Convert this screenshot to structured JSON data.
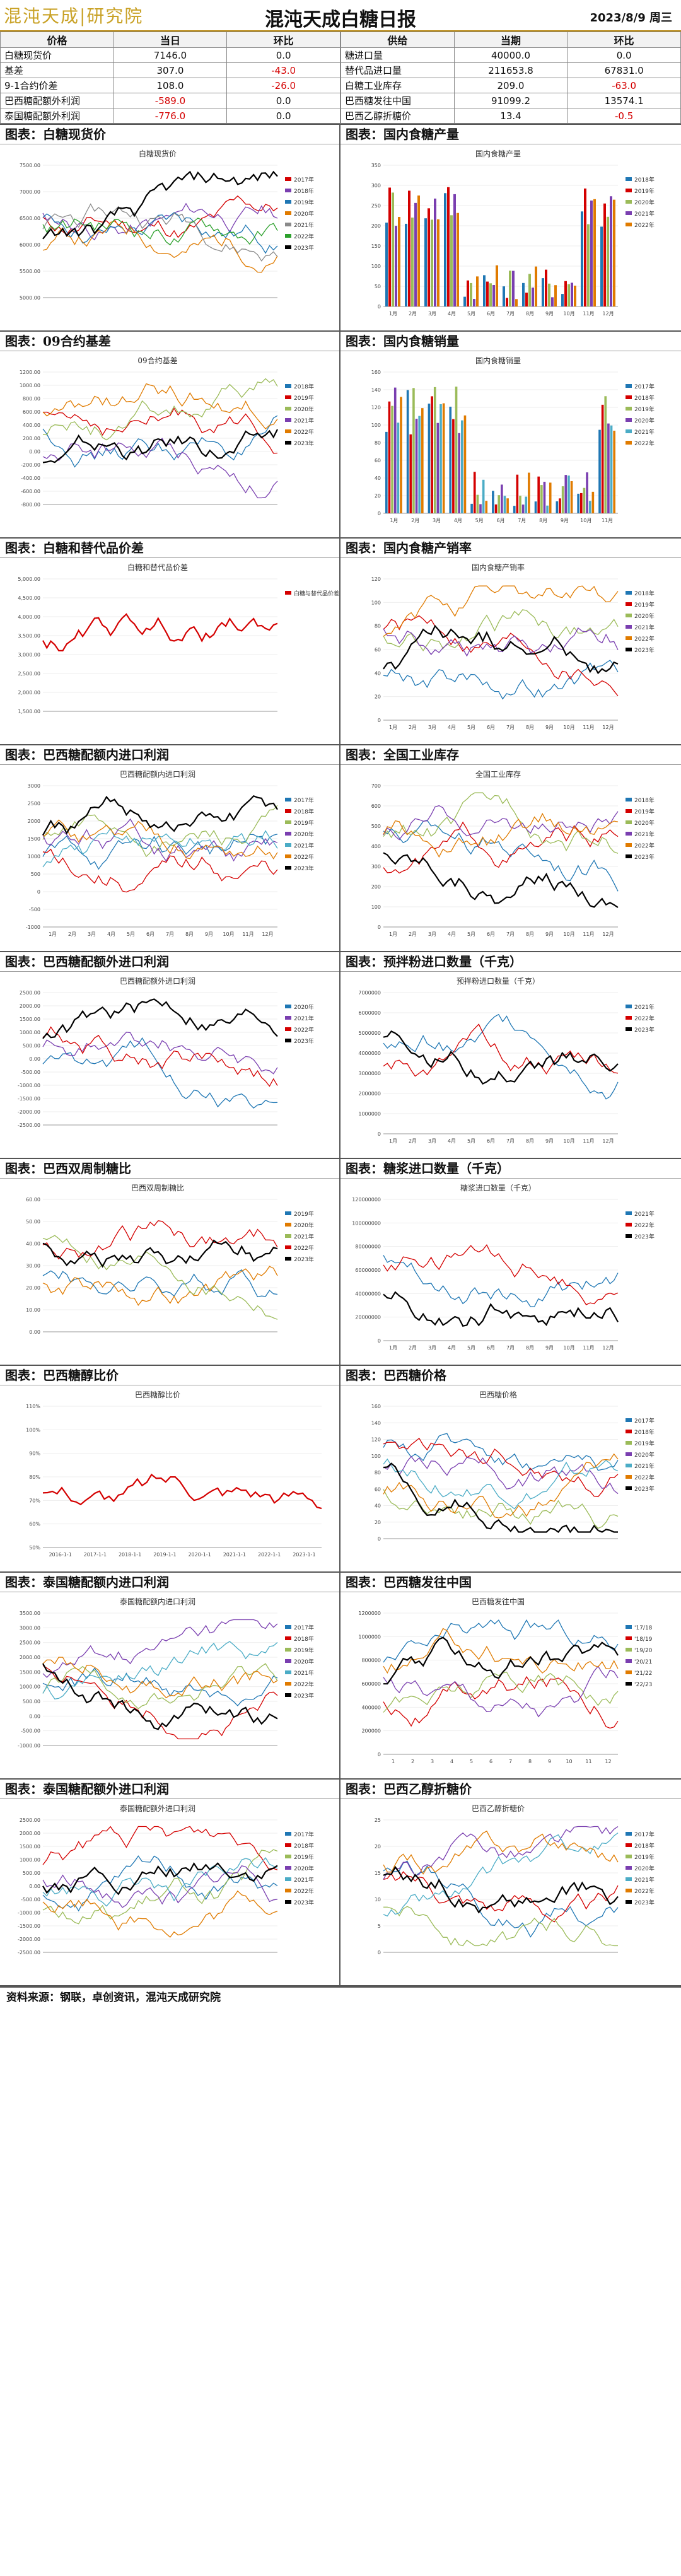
{
  "header": {
    "title": "混沌天成白糖日报",
    "date": "2023/8/9 周三",
    "logo_text": "混沌天成|研究院"
  },
  "tables": {
    "left": {
      "headers": [
        "价格",
        "当日",
        "环比"
      ],
      "rows": [
        [
          "白糖现货价",
          "7146.0",
          "0.0"
        ],
        [
          "基差",
          "307.0",
          "-43.0"
        ],
        [
          "9-1合约价差",
          "108.0",
          "-26.0"
        ],
        [
          "巴西糖配额外利润",
          "-589.0",
          "0.0"
        ],
        [
          "泰国糖配额外利润",
          "-776.0",
          "0.0"
        ]
      ]
    },
    "right": {
      "headers": [
        "供给",
        "当期",
        "环比"
      ],
      "rows": [
        [
          "糖进口量",
          "40000.0",
          "0.0"
        ],
        [
          "替代品进口量",
          "211653.8",
          "67831.0"
        ],
        [
          "白糖工业库存",
          "209.0",
          "-63.0"
        ],
        [
          "巴西糖发往中国",
          "91099.2",
          "13574.1"
        ],
        [
          "巴西乙醇折糖价",
          "13.4",
          "-0.5"
        ]
      ]
    }
  },
  "footer": {
    "source": "资料来源：钢联，卓创资讯，混沌天成研究院"
  },
  "panels": [
    {
      "caption": "图表：白糖现货价",
      "title": "白糖现货价",
      "type": "line",
      "yticks": [
        "5000.00",
        "5500.00",
        "6000.00",
        "6500.00",
        "7000.00",
        "7500.00"
      ],
      "legend": [
        "2017年",
        "2018年",
        "2019年",
        "2020年",
        "2021年",
        "2022年",
        "2023年"
      ],
      "colors": [
        "#d40000",
        "#7a3fb0",
        "#1f77b4",
        "#e07b00",
        "#8a8a8a",
        "#2ca02c",
        "#000000"
      ]
    },
    {
      "caption": "图表：国内食糖产量",
      "title": "国内食糖产量",
      "type": "bar",
      "yticks": [
        "0",
        "50",
        "100",
        "150",
        "200",
        "250",
        "300",
        "350"
      ],
      "xticks": [
        "1月",
        "2月",
        "3月",
        "4月",
        "5月",
        "6月",
        "7月",
        "8月",
        "9月",
        "10月",
        "11月",
        "12月"
      ],
      "legend": [
        "2018年",
        "2019年",
        "2020年",
        "2021年",
        "2022年"
      ],
      "colors": [
        "#1f77b4",
        "#d40000",
        "#9bbb59",
        "#7a3fb0",
        "#e07b00"
      ]
    },
    {
      "caption": "图表：09合约基差",
      "title": "09合约基差",
      "type": "line",
      "yticks": [
        "-800.00",
        "-600.00",
        "-400.00",
        "-200.00",
        "0.00",
        "200.00",
        "400.00",
        "600.00",
        "800.00",
        "1000.00",
        "1200.00"
      ],
      "legend": [
        "2018年",
        "2019年",
        "2020年",
        "2021年",
        "2022年",
        "2023年"
      ],
      "colors": [
        "#1f77b4",
        "#d40000",
        "#9bbb59",
        "#7a3fb0",
        "#e07b00",
        "#000000"
      ]
    },
    {
      "caption": "图表：国内食糖销量",
      "title": "国内食糖销量",
      "type": "bar",
      "yticks": [
        "0",
        "20",
        "40",
        "60",
        "80",
        "100",
        "120",
        "140",
        "160"
      ],
      "xticks": [
        "1月",
        "2月",
        "3月",
        "4月",
        "5月",
        "6月",
        "7月",
        "8月",
        "9月",
        "10月",
        "11月"
      ],
      "legend": [
        "2017年",
        "2018年",
        "2019年",
        "2020年",
        "2021年",
        "2022年"
      ],
      "colors": [
        "#1f77b4",
        "#d40000",
        "#9bbb59",
        "#7a3fb0",
        "#4bacc6",
        "#e07b00"
      ]
    },
    {
      "caption": "图表：白糖和替代品价差",
      "title": "白糖和替代品价差",
      "type": "line",
      "yticks": [
        "1,500.00",
        "2,000.00",
        "2,500.00",
        "3,000.00",
        "3,500.00",
        "4,000.00",
        "4,500.00",
        "5,000.00"
      ],
      "legend": [
        "白糖与替代品价差"
      ],
      "colors": [
        "#d40000"
      ]
    },
    {
      "caption": "图表：国内食糖产销率",
      "title": "国内食糖产销率",
      "type": "line",
      "yticks": [
        "0",
        "20",
        "40",
        "60",
        "80",
        "100",
        "120"
      ],
      "xticks": [
        "1月",
        "2月",
        "3月",
        "4月",
        "5月",
        "6月",
        "7月",
        "8月",
        "9月",
        "10月",
        "11月",
        "12月"
      ],
      "legend": [
        "2018年",
        "2019年",
        "2020年",
        "2021年",
        "2022年",
        "2023年"
      ],
      "colors": [
        "#1f77b4",
        "#d40000",
        "#9bbb59",
        "#7a3fb0",
        "#e07b00",
        "#000000"
      ]
    },
    {
      "caption": "图表：巴西糖配额内进口利润",
      "title": "巴西糖配额内进口利润",
      "type": "line",
      "yticks": [
        "-1000",
        "-500",
        "0",
        "500",
        "1000",
        "1500",
        "2000",
        "2500",
        "3000"
      ],
      "xticks": [
        "1月",
        "2月",
        "3月",
        "4月",
        "5月",
        "6月",
        "7月",
        "8月",
        "9月",
        "10月",
        "11月",
        "12月"
      ],
      "legend": [
        "2017年",
        "2018年",
        "2019年",
        "2020年",
        "2021年",
        "2022年",
        "2023年"
      ],
      "colors": [
        "#1f77b4",
        "#d40000",
        "#9bbb59",
        "#7a3fb0",
        "#4bacc6",
        "#e07b00",
        "#000000"
      ]
    },
    {
      "caption": "图表：全国工业库存",
      "title": "全国工业库存",
      "type": "line",
      "yticks": [
        "0",
        "100",
        "200",
        "300",
        "400",
        "500",
        "600",
        "700"
      ],
      "xticks": [
        "1月",
        "2月",
        "3月",
        "4月",
        "5月",
        "6月",
        "7月",
        "8月",
        "9月",
        "10月",
        "11月",
        "12月"
      ],
      "legend": [
        "2018年",
        "2019年",
        "2020年",
        "2021年",
        "2022年",
        "2023年"
      ],
      "colors": [
        "#1f77b4",
        "#d40000",
        "#9bbb59",
        "#7a3fb0",
        "#e07b00",
        "#000000"
      ]
    },
    {
      "caption": "图表：巴西糖配额外进口利润",
      "title": "巴西糖配额外进口利润",
      "type": "line",
      "yticks": [
        "-2500.00",
        "-2000.00",
        "-1500.00",
        "-1000.00",
        "-500.00",
        "0.00",
        "500.00",
        "1000.00",
        "1500.00",
        "2000.00",
        "2500.00"
      ],
      "legend": [
        "2020年",
        "2021年",
        "2022年",
        "2023年"
      ],
      "colors": [
        "#1f77b4",
        "#7a3fb0",
        "#d40000",
        "#000000"
      ]
    },
    {
      "caption": "图表：预拌粉进口数量（千克）",
      "title": "预拌粉进口数量（千克）",
      "type": "line",
      "yticks": [
        "0",
        "1000000",
        "2000000",
        "3000000",
        "4000000",
        "5000000",
        "6000000",
        "7000000"
      ],
      "xticks": [
        "1月",
        "2月",
        "3月",
        "4月",
        "5月",
        "6月",
        "7月",
        "8月",
        "9月",
        "10月",
        "11月",
        "12月"
      ],
      "legend": [
        "2021年",
        "2022年",
        "2023年"
      ],
      "colors": [
        "#1f77b4",
        "#d40000",
        "#000000"
      ]
    },
    {
      "caption": "图表：巴西双周制糖比",
      "title": "巴西双周制糖比",
      "type": "line",
      "yticks": [
        "0.00",
        "10.00",
        "20.00",
        "30.00",
        "40.00",
        "50.00",
        "60.00"
      ],
      "legend": [
        "2019年",
        "2020年",
        "2021年",
        "2022年",
        "2023年"
      ],
      "colors": [
        "#1f77b4",
        "#e07b00",
        "#9bbb59",
        "#d40000",
        "#000000"
      ]
    },
    {
      "caption": "图表：糖浆进口数量（千克）",
      "title": "糖浆进口数量（千克）",
      "type": "line",
      "yticks": [
        "0",
        "20000000",
        "40000000",
        "60000000",
        "80000000",
        "100000000",
        "120000000"
      ],
      "xticks": [
        "1月",
        "2月",
        "3月",
        "4月",
        "5月",
        "6月",
        "7月",
        "8月",
        "9月",
        "10月",
        "11月",
        "12月"
      ],
      "legend": [
        "2021年",
        "2022年",
        "2023年"
      ],
      "colors": [
        "#1f77b4",
        "#d40000",
        "#000000"
      ]
    },
    {
      "caption": "图表：巴西糖醇比价",
      "title": "巴西糖醇比价",
      "type": "line",
      "yticks": [
        "50%",
        "60%",
        "70%",
        "80%",
        "90%",
        "100%",
        "110%"
      ],
      "xticks": [
        "2016-1-1",
        "2017-1-1",
        "2018-1-1",
        "2019-1-1",
        "2020-1-1",
        "2021-1-1",
        "2022-1-1",
        "2023-1-1"
      ],
      "legend": [],
      "colors": [
        "#d40000"
      ]
    },
    {
      "caption": "图表：巴西糖价格",
      "title": "巴西糖价格",
      "type": "line",
      "yticks": [
        "0",
        "20",
        "40",
        "60",
        "80",
        "100",
        "120",
        "140",
        "160"
      ],
      "legend": [
        "2017年",
        "2018年",
        "2019年",
        "2020年",
        "2021年",
        "2022年",
        "2023年"
      ],
      "colors": [
        "#1f77b4",
        "#d40000",
        "#9bbb59",
        "#7a3fb0",
        "#4bacc6",
        "#e07b00",
        "#000000"
      ]
    },
    {
      "caption": "图表：泰国糖配额内进口利润",
      "title": "泰国糖配额内进口利润",
      "type": "line",
      "yticks": [
        "-1000.00",
        "-500.00",
        "0.00",
        "500.00",
        "1000.00",
        "1500.00",
        "2000.00",
        "2500.00",
        "3000.00",
        "3500.00"
      ],
      "legend": [
        "2017年",
        "2018年",
        "2019年",
        "2020年",
        "2021年",
        "2022年",
        "2023年"
      ],
      "colors": [
        "#1f77b4",
        "#d40000",
        "#9bbb59",
        "#7a3fb0",
        "#4bacc6",
        "#e07b00",
        "#000000"
      ]
    },
    {
      "caption": "图表：巴西糖发往中国",
      "title": "巴西糖发往中国",
      "type": "line",
      "yticks": [
        "0",
        "200000",
        "400000",
        "600000",
        "800000",
        "1000000",
        "1200000"
      ],
      "xticks": [
        "1",
        "2",
        "3",
        "4",
        "5",
        "6",
        "7",
        "8",
        "9",
        "10",
        "11",
        "12"
      ],
      "legend": [
        "'17/18",
        "'18/19",
        "'19/20",
        "'20/21",
        "'21/22",
        "'22/23"
      ],
      "colors": [
        "#1f77b4",
        "#d40000",
        "#9bbb59",
        "#7a3fb0",
        "#e07b00",
        "#000000"
      ]
    },
    {
      "caption": "图表：泰国糖配额外进口利润",
      "title": "泰国糖配额外进口利润",
      "type": "line",
      "yticks": [
        "-2500.00",
        "-2000.00",
        "-1500.00",
        "-1000.00",
        "-500.00",
        "0.00",
        "500.00",
        "1000.00",
        "1500.00",
        "2000.00",
        "2500.00"
      ],
      "legend": [
        "2017年",
        "2018年",
        "2019年",
        "2020年",
        "2021年",
        "2022年",
        "2023年"
      ],
      "colors": [
        "#1f77b4",
        "#d40000",
        "#9bbb59",
        "#7a3fb0",
        "#4bacc6",
        "#e07b00",
        "#000000"
      ]
    },
    {
      "caption": "图表：巴西乙醇折糖价",
      "title": "巴西乙醇折糖价",
      "type": "line",
      "yticks": [
        "0",
        "5",
        "10",
        "15",
        "20",
        "25"
      ],
      "legend": [
        "2017年",
        "2018年",
        "2019年",
        "2020年",
        "2021年",
        "2022年",
        "2023年"
      ],
      "colors": [
        "#1f77b4",
        "#d40000",
        "#9bbb59",
        "#7a3fb0",
        "#4bacc6",
        "#e07b00",
        "#000000"
      ]
    }
  ]
}
